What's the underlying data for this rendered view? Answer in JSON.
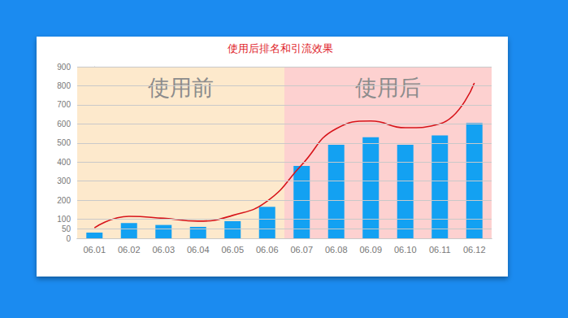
{
  "chart_data": {
    "type": "bar",
    "title": "使用后排名和引流效果",
    "categories": [
      "06.01",
      "06.02",
      "06.03",
      "06.04",
      "06.05",
      "06.06",
      "06.07",
      "06.08",
      "06.09",
      "06.10",
      "06.11",
      "06.12"
    ],
    "series": [
      {
        "type": "bar",
        "color": "#13a1f2",
        "values": [
          30,
          80,
          70,
          60,
          90,
          165,
          380,
          490,
          530,
          490,
          540,
          605
        ]
      },
      {
        "type": "line",
        "color": "#d7141a",
        "values": [
          55,
          115,
          105,
          90,
          120,
          195,
          385,
          575,
          615,
          580,
          600,
          815
        ]
      }
    ],
    "ylim": [
      0,
      900
    ],
    "yticks": [
      0,
      50,
      100,
      200,
      300,
      400,
      500,
      600,
      700,
      800,
      900
    ],
    "grid": true,
    "annotations": [
      {
        "text": "使用前",
        "from": "06.01",
        "to": "06.06"
      },
      {
        "text": "使用后",
        "from": "06.07",
        "to": "06.12"
      }
    ]
  }
}
